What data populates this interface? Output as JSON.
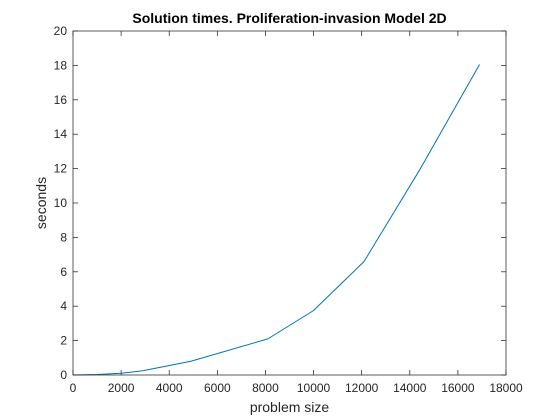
{
  "chart_data": {
    "type": "line",
    "title": "Solution times. Proliferation-invasion Model 2D",
    "xlabel": "problem size",
    "ylabel": "seconds",
    "xlim": [
      0,
      18000
    ],
    "ylim": [
      0,
      20
    ],
    "xticks": [
      0,
      2000,
      4000,
      6000,
      8000,
      10000,
      12000,
      14000,
      16000,
      18000
    ],
    "yticks": [
      0,
      2,
      4,
      6,
      8,
      10,
      12,
      14,
      16,
      18,
      20
    ],
    "grid": false,
    "series": [
      {
        "color": "#0072BD",
        "x": [
          0,
          1000,
          2000,
          2900,
          4900,
          8100,
          10000,
          12100,
          14400,
          16900
        ],
        "y": [
          0,
          0.03,
          0.1,
          0.25,
          0.8,
          2.1,
          3.75,
          6.6,
          11.9,
          18.05
        ]
      }
    ]
  }
}
